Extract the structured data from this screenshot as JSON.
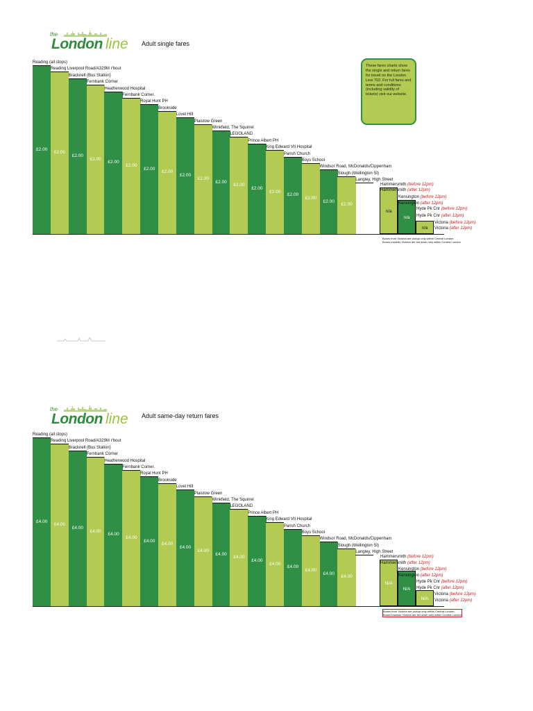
{
  "stops": [
    "Reading (all stops)",
    "Reading Liverpool Road/A329M r'bout",
    "Bracknell (Bus Station)",
    "Fernbank Corner",
    "Heatherwood Hospital",
    "Fernbank Corner.",
    "Royal Hunt PH",
    "Brookside",
    "Lovel Hill",
    "Plaistow Green",
    "Winkfield, The Squirrel",
    "LEGOLAND",
    "Prince Albert PH",
    "King Edward VII Hospital",
    "Parish Church",
    "Boys School",
    "Windsor Road, McDonalds/Cippenham",
    "Slough (Wellington St)",
    "Langley, High Street"
  ],
  "london_stops": [
    {
      "name": "Hammersmith",
      "note": "(before 12pm)"
    },
    {
      "name": "Hammersmith",
      "note": "(after 12pm)"
    },
    {
      "name": "Kensington",
      "note": "(before 12pm)"
    },
    {
      "name": "Kensington",
      "note": "(after 12pm)"
    },
    {
      "name": "Hyde Pk Cnr",
      "note": "(before 12pm)"
    },
    {
      "name": "Hyde Pk Cnr",
      "note": "(after 12pm)"
    },
    {
      "name": "Victoria",
      "note": "(before 12pm)"
    },
    {
      "name": "Victoria",
      "note": "(after 12pm)"
    }
  ],
  "charts": [
    {
      "logo": {
        "the": "the",
        "london": "London",
        "line": "line"
      },
      "title": "Adult single fares",
      "fare_labels": [
        "£2.00",
        "£2.00",
        "£2.00",
        "£2.00",
        "£2.00",
        "£2.00",
        "£2.00",
        "£2.00",
        "£2.00",
        "£2.00",
        "£2.00",
        "£2.00",
        "£2.00",
        "£2.00",
        "£2.00",
        "£2.00",
        "£2.00",
        "£2.00"
      ],
      "na_labels": [
        "n/a",
        "n/a",
        "n/a"
      ],
      "footnotes": [
        "Buses from Victoria are pickup only within Central London",
        "Buses towards Victoria are set down only within Central London"
      ],
      "info": "These fares charts show the single and return fares for travel on the London Line 702. For full fares and terms and conditions (including validity of tickets) visit our website."
    },
    {
      "logo": {
        "the": "the",
        "london": "London",
        "line": "line"
      },
      "title": "Adult same-day return fares",
      "fare_labels": [
        "£4.00",
        "£4.00",
        "£4.00",
        "£4.00",
        "£4.00",
        "£4.00",
        "£4.00",
        "£4.00",
        "£4.00",
        "£4.00",
        "£4.00",
        "£4.00",
        "£4.00",
        "£4.00",
        "£4.00",
        "£4.00",
        "£4.00",
        "£4.00"
      ],
      "na_labels": [
        "N/A",
        "N/A",
        "N/A"
      ],
      "footnotes": [
        "Buses from Victoria are pickup only within Central London",
        "Buses towards Victoria are set down only within Central London"
      ]
    }
  ],
  "colors": {
    "dark_green": "#2f8f45",
    "light_green": "#b3cb52",
    "note_red": "#d01818"
  }
}
